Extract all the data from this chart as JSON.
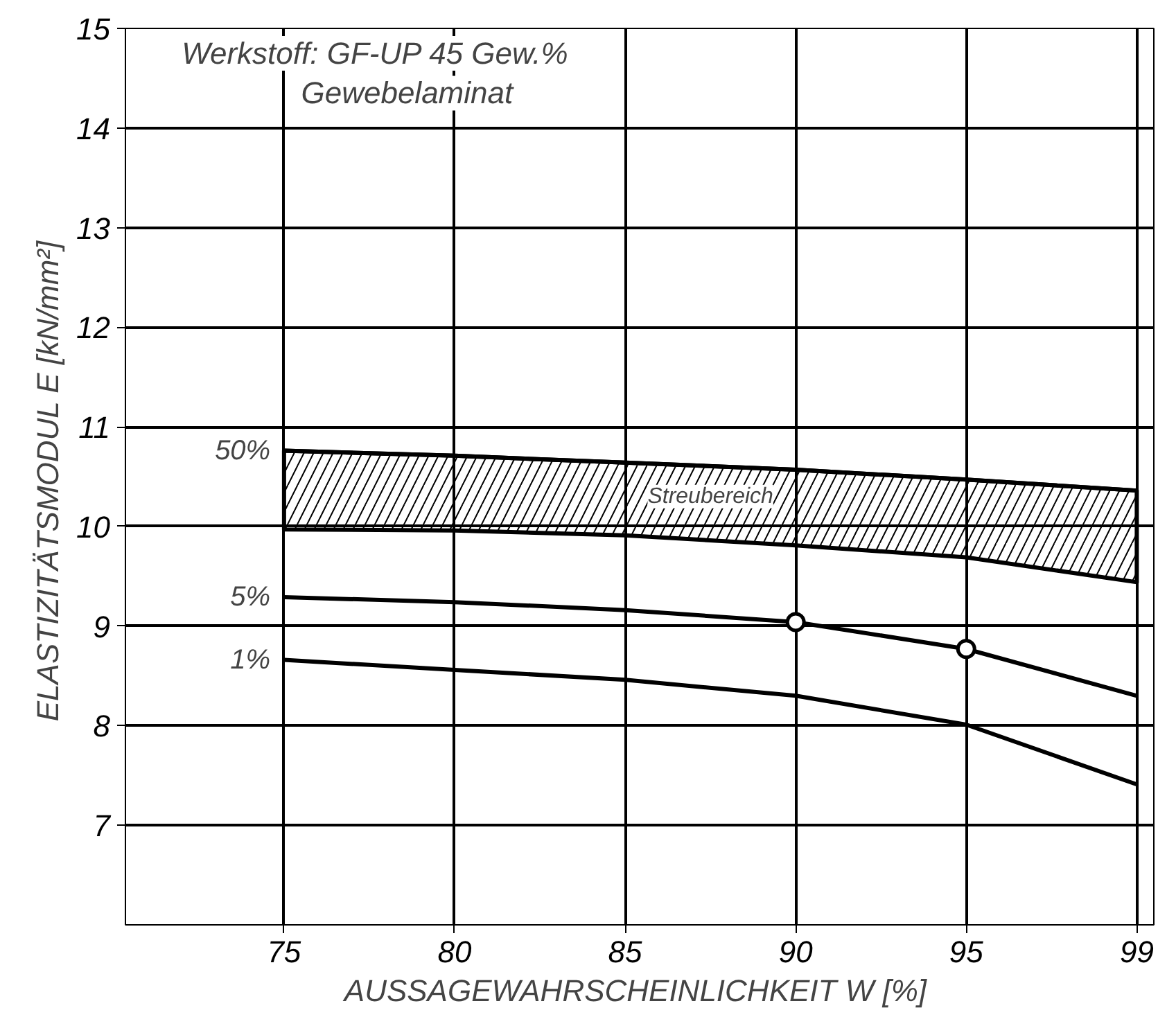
{
  "chart_data": {
    "type": "line",
    "xlabel": "AUSSAGEWAHRSCHEINLICHKEIT  W [%]",
    "ylabel": "ELASTIZITÄTSMODUL  E [kN/mm²]",
    "categories": [
      "75",
      "80",
      "85",
      "90",
      "95",
      "99"
    ],
    "ylim": [
      6,
      15
    ],
    "yticks": [
      7,
      8,
      9,
      10,
      11,
      12,
      13,
      14,
      15
    ],
    "grid": true,
    "line_style": "solid",
    "series": [
      {
        "name": "50%",
        "color": "#000000",
        "values": [
          10.76,
          10.71,
          10.64,
          10.57,
          10.47,
          10.36
        ],
        "lower": [
          9.97,
          9.96,
          9.91,
          9.81,
          9.69,
          9.44
        ],
        "upper": [
          10.76,
          10.71,
          10.64,
          10.57,
          10.47,
          10.36
        ]
      },
      {
        "name": "5%",
        "color": "#000000",
        "values": [
          9.29,
          9.24,
          9.16,
          9.04,
          8.77,
          8.3
        ]
      },
      {
        "name": "1%",
        "color": "#000000",
        "values": [
          8.66,
          8.56,
          8.46,
          8.3,
          8.01,
          7.41
        ]
      },
      {
        "type": "scatter",
        "marker": "circle",
        "color": "#000000",
        "x": [
          "90",
          "95"
        ],
        "values": [
          9.04,
          8.77
        ]
      }
    ],
    "annotations": [
      "Werkstoff:  GF-UP  45 Gew.%",
      "Gewebelaminat",
      "Streubereich"
    ]
  }
}
